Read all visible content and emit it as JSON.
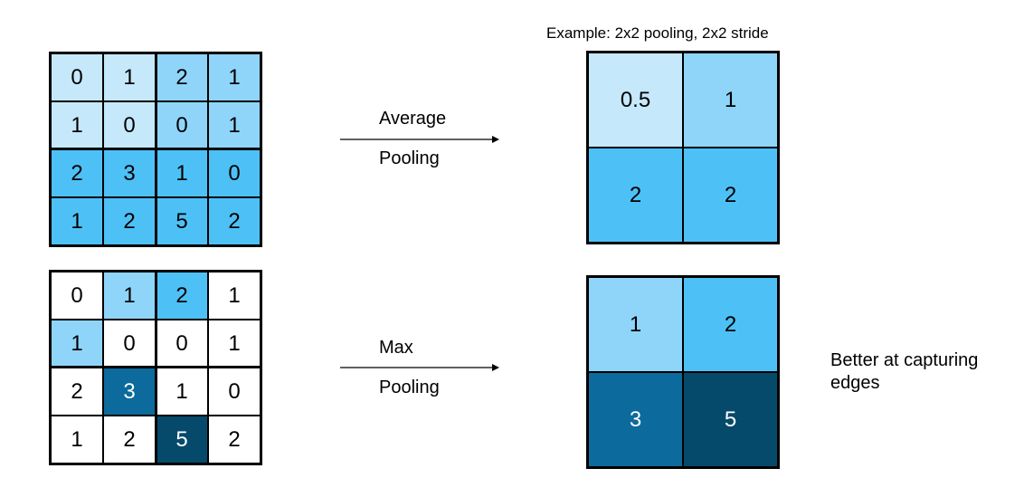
{
  "example_label": "Example: 2x2 pooling, 2x2 stride",
  "input_matrix": [
    [
      "0",
      "1",
      "2",
      "1"
    ],
    [
      "1",
      "0",
      "0",
      "1"
    ],
    [
      "2",
      "3",
      "1",
      "0"
    ],
    [
      "1",
      "2",
      "5",
      "2"
    ]
  ],
  "average": {
    "label_top": "Average",
    "label_bottom": "Pooling",
    "output": [
      [
        "0.5",
        "1"
      ],
      [
        "2",
        "2"
      ]
    ],
    "input_colors": [
      [
        "#c5e8fb",
        "#c5e8fb",
        "#8fd5fa",
        "#8fd5fa"
      ],
      [
        "#c5e8fb",
        "#c5e8fb",
        "#8fd5fa",
        "#8fd5fa"
      ],
      [
        "#4dc1f6",
        "#4dc1f6",
        "#4dc1f6",
        "#4dc1f6"
      ],
      [
        "#4dc1f6",
        "#4dc1f6",
        "#4dc1f6",
        "#4dc1f6"
      ]
    ],
    "output_colors": [
      [
        "#c5e8fb",
        "#8fd5fa"
      ],
      [
        "#4dc1f6",
        "#4dc1f6"
      ]
    ]
  },
  "max": {
    "label_top": "Max",
    "label_bottom": "Pooling",
    "output": [
      [
        "1",
        "2"
      ],
      [
        "3",
        "5"
      ]
    ],
    "note": "Better at capturing edges",
    "input_colors": [
      [
        "#ffffff",
        "#8fd5fa",
        "#4dc1f6",
        "#ffffff"
      ],
      [
        "#8fd5fa",
        "#ffffff",
        "#ffffff",
        "#ffffff"
      ],
      [
        "#ffffff",
        "#0c6a9c",
        "#ffffff",
        "#ffffff"
      ],
      [
        "#ffffff",
        "#ffffff",
        "#054a6b",
        "#ffffff"
      ]
    ],
    "input_text_colors": [
      [
        "#000000",
        "#000000",
        "#000000",
        "#000000"
      ],
      [
        "#000000",
        "#000000",
        "#000000",
        "#000000"
      ],
      [
        "#000000",
        "#ffffff",
        "#000000",
        "#000000"
      ],
      [
        "#000000",
        "#000000",
        "#ffffff",
        "#000000"
      ]
    ],
    "output_colors": [
      [
        "#8fd5fa",
        "#4dc1f6"
      ],
      [
        "#0c6a9c",
        "#054a6b"
      ]
    ],
    "output_text_colors": [
      [
        "#000000",
        "#000000"
      ],
      [
        "#ffffff",
        "#ffffff"
      ]
    ]
  }
}
